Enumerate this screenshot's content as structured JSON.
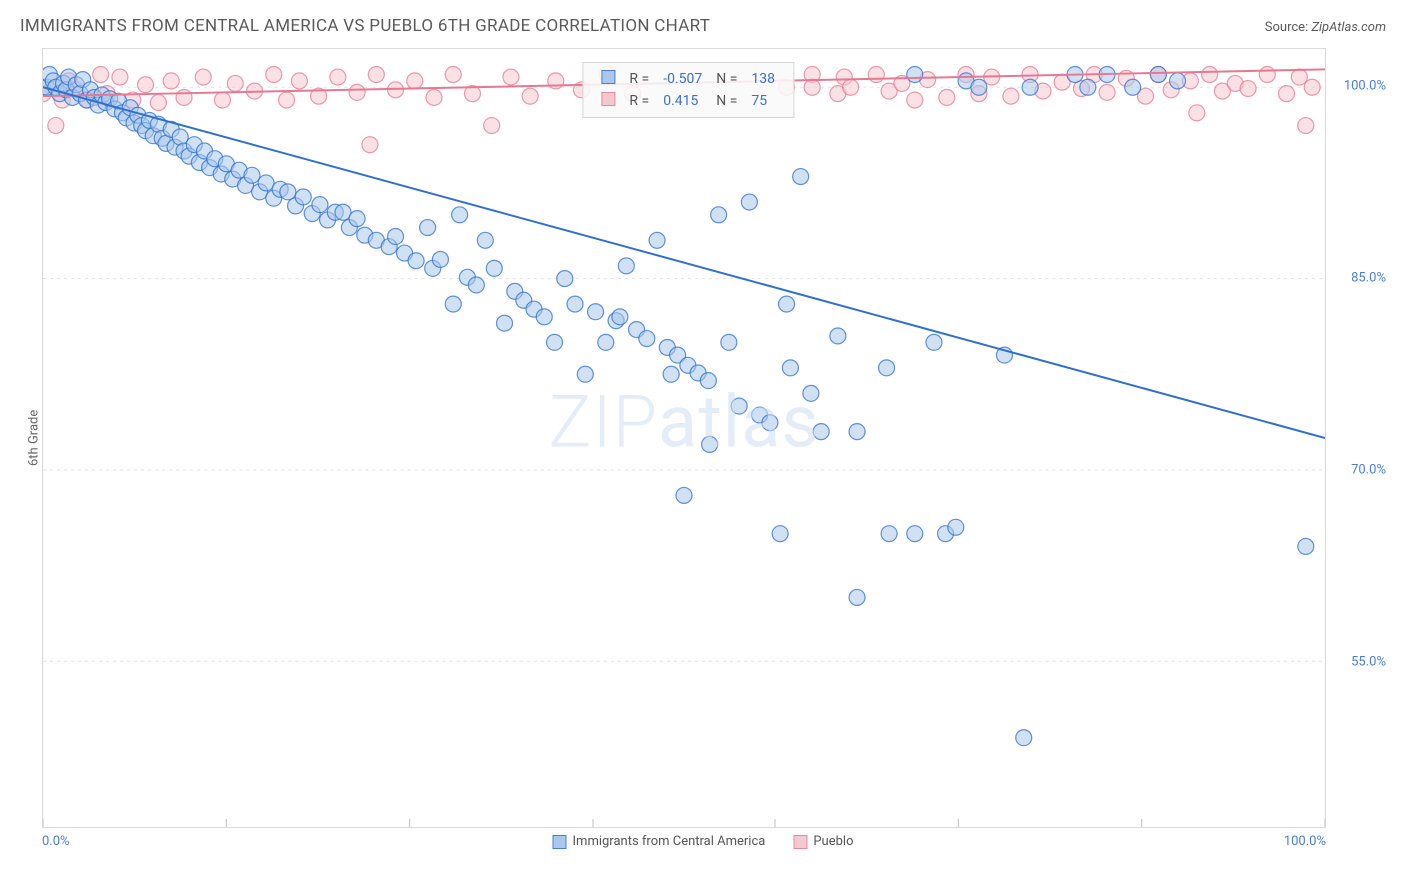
{
  "header": {
    "title": "IMMIGRANTS FROM CENTRAL AMERICA VS PUEBLO 6TH GRADE CORRELATION CHART",
    "source_label": "Source:",
    "source_value": "ZipAtlas.com"
  },
  "watermark": "ZIPatlas",
  "axes": {
    "y_label": "6th Grade",
    "x_min_label": "0.0%",
    "x_max_label": "100.0%",
    "y_ticks": [
      {
        "value": 100.0,
        "label": "100.0%"
      },
      {
        "value": 85.0,
        "label": "85.0%"
      },
      {
        "value": 70.0,
        "label": "70.0%"
      },
      {
        "value": 55.0,
        "label": "55.0%"
      }
    ],
    "x_ticks": [
      0,
      14.3,
      28.6,
      42.9,
      57.1,
      71.4,
      85.7,
      100
    ],
    "xlim": [
      0,
      100
    ],
    "ylim": [
      42,
      103
    ]
  },
  "legend": {
    "series1": {
      "label": "Immigrants from Central America",
      "fill": "#a9c8eb",
      "stroke": "#4a7ddb"
    },
    "series2": {
      "label": "Pueblo",
      "fill": "#f5c8d1",
      "stroke": "#e68aa1"
    }
  },
  "stats_box": {
    "rows": [
      {
        "swatch_fill": "#a9c8eb",
        "swatch_stroke": "#4a7ddb",
        "r_label": "R =",
        "r": "-0.507",
        "n_label": "N =",
        "n": "138"
      },
      {
        "swatch_fill": "#f5c8d1",
        "swatch_stroke": "#e68aa1",
        "r_label": "R =",
        "r": "0.415",
        "n_label": "N =",
        "n": "75"
      }
    ]
  },
  "styling": {
    "background": "#ffffff",
    "grid_color": "#e2e2e2",
    "border_color": "#d9d9d9",
    "marker_radius": 8,
    "marker_opacity": 0.55,
    "marker_stroke_width": 1.2,
    "trend_line_width": 2,
    "stats_box_border": "#d6d6d6",
    "stats_box_bg": "#f9f9f9cc"
  },
  "series": {
    "blue": {
      "color_fill": "#a9c8eb",
      "color_stroke": "#2f6fd0",
      "trend_color": "#2f6fd0",
      "trend": {
        "x1": 0,
        "y1": 100,
        "x2": 100,
        "y2": 72.5
      },
      "points": [
        [
          0,
          100
        ],
        [
          0.3,
          100
        ],
        [
          0.5,
          101
        ],
        [
          0.8,
          100.5
        ],
        [
          1,
          100
        ],
        [
          1.3,
          99.5
        ],
        [
          1.6,
          100.3
        ],
        [
          1.8,
          99.8
        ],
        [
          2,
          100.8
        ],
        [
          2.3,
          99.2
        ],
        [
          2.6,
          100.2
        ],
        [
          2.9,
          99.5
        ],
        [
          3.1,
          100.6
        ],
        [
          3.4,
          99
        ],
        [
          3.7,
          99.8
        ],
        [
          4,
          99.2
        ],
        [
          4.3,
          98.6
        ],
        [
          4.6,
          99.4
        ],
        [
          4.9,
          98.8
        ],
        [
          5.2,
          99.1
        ],
        [
          5.6,
          98.3
        ],
        [
          5.9,
          98.9
        ],
        [
          6.2,
          98
        ],
        [
          6.5,
          97.6
        ],
        [
          6.8,
          98.4
        ],
        [
          7.1,
          97.2
        ],
        [
          7.4,
          97.8
        ],
        [
          7.7,
          97
        ],
        [
          8,
          96.6
        ],
        [
          8.3,
          97.4
        ],
        [
          8.6,
          96.2
        ],
        [
          9,
          97.1
        ],
        [
          9.3,
          96
        ],
        [
          9.6,
          95.6
        ],
        [
          10,
          96.7
        ],
        [
          10.3,
          95.3
        ],
        [
          10.7,
          96.1
        ],
        [
          11,
          95
        ],
        [
          11.4,
          94.6
        ],
        [
          11.8,
          95.5
        ],
        [
          12.2,
          94.1
        ],
        [
          12.6,
          95
        ],
        [
          13,
          93.7
        ],
        [
          13.4,
          94.4
        ],
        [
          13.9,
          93.2
        ],
        [
          14.3,
          94
        ],
        [
          14.8,
          92.8
        ],
        [
          15.3,
          93.5
        ],
        [
          15.8,
          92.3
        ],
        [
          16.3,
          93.1
        ],
        [
          16.9,
          91.8
        ],
        [
          17.4,
          92.5
        ],
        [
          18,
          91.3
        ],
        [
          18.5,
          92
        ],
        [
          19.1,
          91.8
        ],
        [
          19.7,
          90.7
        ],
        [
          20.3,
          91.4
        ],
        [
          21,
          90.1
        ],
        [
          21.6,
          90.8
        ],
        [
          22.2,
          89.6
        ],
        [
          22.8,
          90.2
        ],
        [
          23.4,
          90.2
        ],
        [
          23.9,
          89
        ],
        [
          24.5,
          89.7
        ],
        [
          25.1,
          88.4
        ],
        [
          26,
          88
        ],
        [
          27,
          87.5
        ],
        [
          27.5,
          88.3
        ],
        [
          28.2,
          87
        ],
        [
          29.1,
          86.4
        ],
        [
          30,
          89
        ],
        [
          30.4,
          85.8
        ],
        [
          31,
          86.5
        ],
        [
          32,
          83
        ],
        [
          32.5,
          90
        ],
        [
          33.1,
          85.1
        ],
        [
          33.8,
          84.5
        ],
        [
          34.5,
          88
        ],
        [
          35.2,
          85.8
        ],
        [
          36,
          81.5
        ],
        [
          36.8,
          84
        ],
        [
          37.5,
          83.3
        ],
        [
          38.3,
          82.6
        ],
        [
          39.1,
          82
        ],
        [
          39.9,
          80
        ],
        [
          40.7,
          85
        ],
        [
          41.5,
          83
        ],
        [
          42.3,
          77.5
        ],
        [
          43.1,
          82.4
        ],
        [
          43.9,
          80
        ],
        [
          44.7,
          81.7
        ],
        [
          45,
          82
        ],
        [
          45.5,
          86
        ],
        [
          46.3,
          81
        ],
        [
          47.1,
          80.3
        ],
        [
          47.9,
          88
        ],
        [
          48.7,
          79.6
        ],
        [
          49,
          77.5
        ],
        [
          49.5,
          79
        ],
        [
          50,
          68
        ],
        [
          50.3,
          78.2
        ],
        [
          51.1,
          77.6
        ],
        [
          51.9,
          77
        ],
        [
          52,
          72
        ],
        [
          52.7,
          90
        ],
        [
          53.5,
          80
        ],
        [
          54.3,
          75
        ],
        [
          55.1,
          91
        ],
        [
          55.9,
          74.3
        ],
        [
          56.7,
          73.7
        ],
        [
          57.5,
          65
        ],
        [
          58,
          83
        ],
        [
          58.3,
          78
        ],
        [
          59.1,
          93
        ],
        [
          59.9,
          76
        ],
        [
          60.7,
          73
        ],
        [
          62,
          80.5
        ],
        [
          63.5,
          73
        ],
        [
          63.5,
          60
        ],
        [
          65.8,
          78
        ],
        [
          66,
          65
        ],
        [
          68,
          65
        ],
        [
          68,
          101
        ],
        [
          69.5,
          80
        ],
        [
          70.4,
          65
        ],
        [
          71.2,
          65.5
        ],
        [
          72,
          100.5
        ],
        [
          73,
          100
        ],
        [
          75,
          79
        ],
        [
          76.5,
          49
        ],
        [
          77,
          100
        ],
        [
          80.5,
          101
        ],
        [
          81.5,
          100
        ],
        [
          83,
          101
        ],
        [
          85,
          100
        ],
        [
          87,
          101
        ],
        [
          88.5,
          100.5
        ],
        [
          98.5,
          64
        ]
      ]
    },
    "pink": {
      "color_fill": "#f5c8d1",
      "color_stroke": "#e67893",
      "trend_color": "#e67893",
      "trend": {
        "x1": 0,
        "y1": 99.3,
        "x2": 100,
        "y2": 101.4
      },
      "points": [
        [
          0,
          99.5
        ],
        [
          1,
          97
        ],
        [
          1.5,
          99
        ],
        [
          2,
          100.5
        ],
        [
          2.5,
          99.8
        ],
        [
          3.5,
          99
        ],
        [
          4.5,
          101
        ],
        [
          5,
          99.5
        ],
        [
          6,
          100.8
        ],
        [
          7,
          99
        ],
        [
          8,
          100.2
        ],
        [
          9,
          98.8
        ],
        [
          10,
          100.5
        ],
        [
          11,
          99.2
        ],
        [
          12.5,
          100.8
        ],
        [
          14,
          99
        ],
        [
          15,
          100.3
        ],
        [
          16.5,
          99.7
        ],
        [
          18,
          101
        ],
        [
          19,
          99
        ],
        [
          20,
          100.5
        ],
        [
          21.5,
          99.3
        ],
        [
          23,
          100.8
        ],
        [
          24.5,
          99.6
        ],
        [
          25.5,
          95.5
        ],
        [
          26,
          101
        ],
        [
          27.5,
          99.8
        ],
        [
          29,
          100.5
        ],
        [
          30.5,
          99.2
        ],
        [
          32,
          101
        ],
        [
          33.5,
          99.5
        ],
        [
          35,
          97
        ],
        [
          36.5,
          100.8
        ],
        [
          38,
          99.3
        ],
        [
          40,
          100.5
        ],
        [
          42,
          99.8
        ],
        [
          44,
          101
        ],
        [
          46,
          99.5
        ],
        [
          58,
          100
        ],
        [
          60,
          101
        ],
        [
          60,
          100
        ],
        [
          62,
          99.5
        ],
        [
          62.5,
          100.8
        ],
        [
          63,
          100
        ],
        [
          65,
          101
        ],
        [
          66,
          99.7
        ],
        [
          67,
          100.3
        ],
        [
          68,
          99
        ],
        [
          69,
          100.6
        ],
        [
          70.5,
          99.2
        ],
        [
          72,
          101
        ],
        [
          73,
          99.5
        ],
        [
          74,
          100.8
        ],
        [
          75.5,
          99.3
        ],
        [
          77,
          101
        ],
        [
          78,
          99.7
        ],
        [
          79.5,
          100.4
        ],
        [
          81,
          99.9
        ],
        [
          82,
          101
        ],
        [
          83,
          99.6
        ],
        [
          84.5,
          100.7
        ],
        [
          86,
          99.3
        ],
        [
          87,
          101
        ],
        [
          88,
          99.8
        ],
        [
          89.5,
          100.5
        ],
        [
          90,
          98
        ],
        [
          91,
          101
        ],
        [
          92,
          99.7
        ],
        [
          93,
          100.3
        ],
        [
          94,
          99.9
        ],
        [
          95.5,
          101
        ],
        [
          97,
          99.5
        ],
        [
          98,
          100.8
        ],
        [
          98.5,
          97
        ],
        [
          99,
          100
        ]
      ]
    }
  }
}
